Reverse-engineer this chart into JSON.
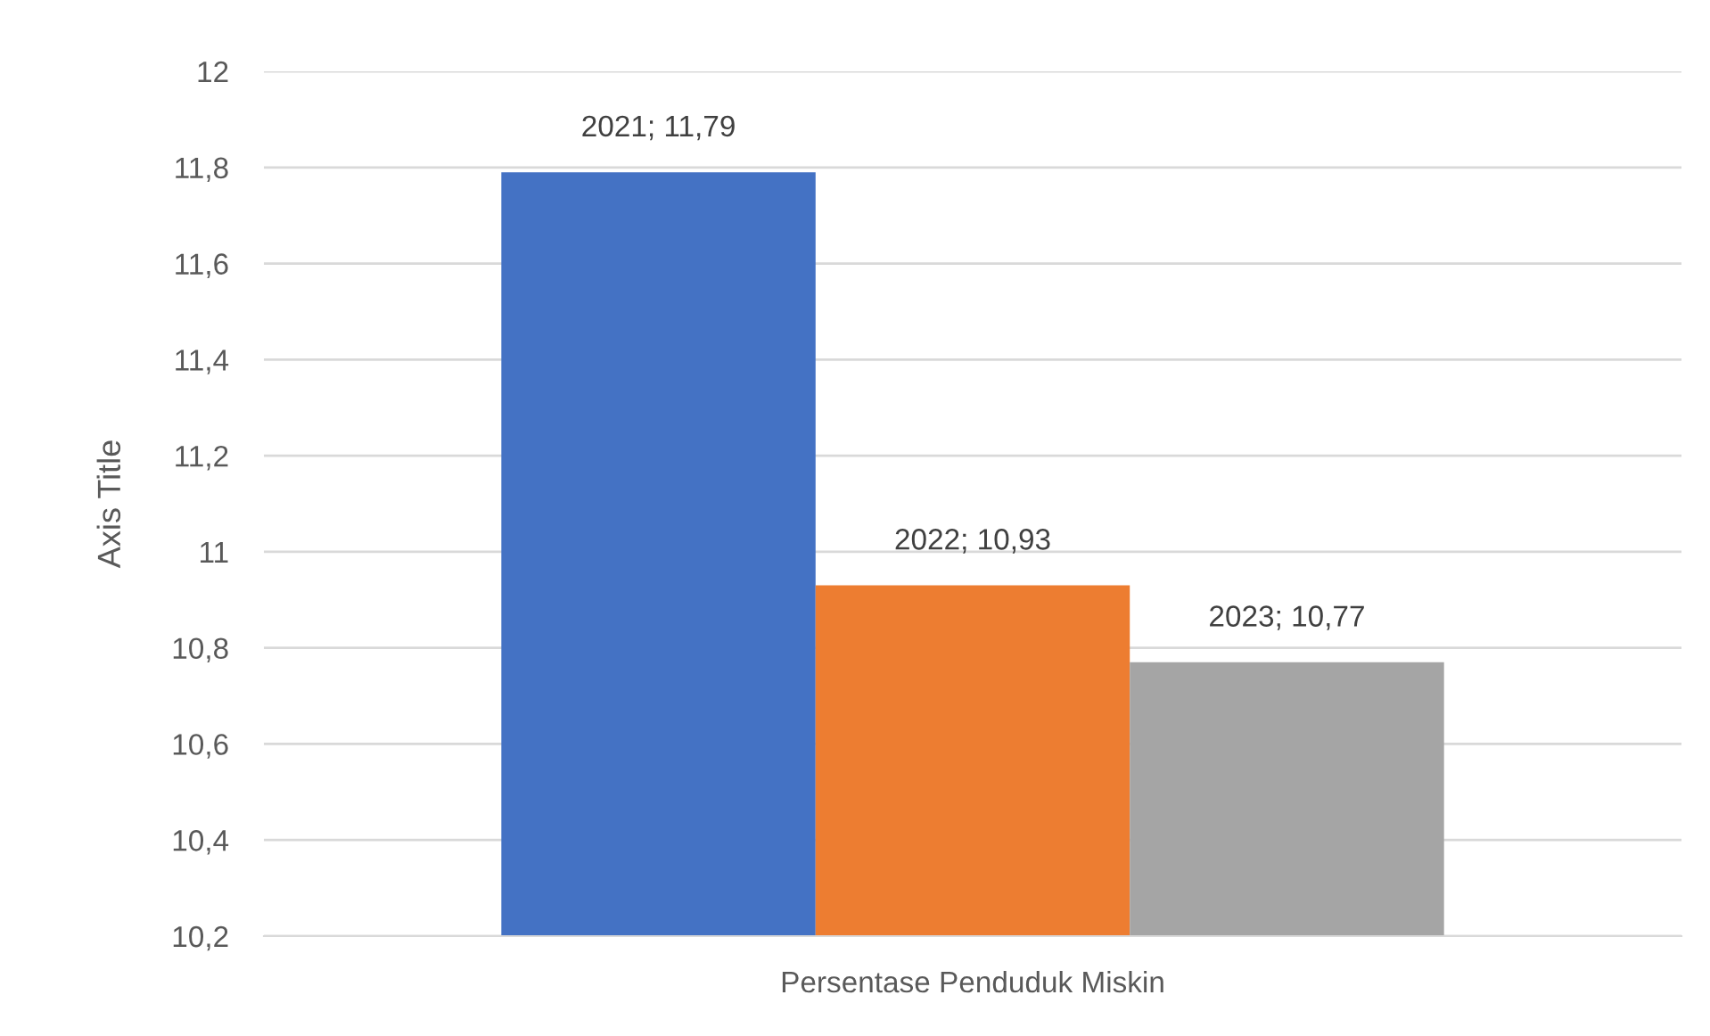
{
  "chart_data": {
    "type": "bar",
    "ylabel": "Axis Title",
    "categories": [
      "Persentase Penduduk Miskin"
    ],
    "series": [
      {
        "color": "#4472c4",
        "values": [
          11.79
        ],
        "value_labels": [
          "2021; 11,79"
        ]
      },
      {
        "color": "#ed7d31",
        "values": [
          10.93
        ],
        "value_labels": [
          "2022; 10,93"
        ]
      },
      {
        "color": "#a5a5a5",
        "values": [
          10.77
        ],
        "value_labels": [
          "2023; 10,77"
        ]
      }
    ],
    "ylim": [
      10.2,
      12
    ],
    "yticks": [
      {
        "value": 10.2,
        "label": "10,2"
      },
      {
        "value": 10.4,
        "label": "10,4"
      },
      {
        "value": 10.6,
        "label": "10,6"
      },
      {
        "value": 10.8,
        "label": "10,8"
      },
      11,
      {
        "value": 11.2,
        "label": "11,2"
      },
      {
        "value": 11.4,
        "label": "11,4"
      },
      {
        "value": 11.6,
        "label": "11,6"
      },
      {
        "value": 11.8,
        "label": "11,8"
      },
      12
    ],
    "grid": "y"
  }
}
